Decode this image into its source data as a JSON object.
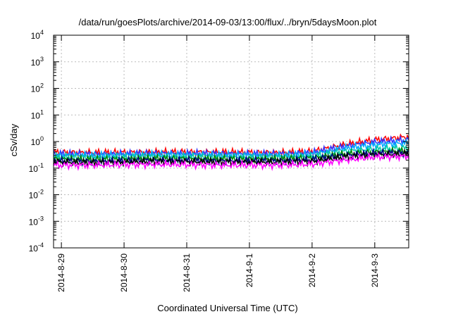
{
  "chart_data": {
    "type": "line",
    "title": "/data/run/goesPlots/archive/2014-09-03/13:00/flux/../bryn/5daysMoon.plot",
    "xlabel": "Coordinated Universal Time (UTC)",
    "ylabel": "cSv/day",
    "yscale": "log",
    "ylim": [
      0.0001,
      10000
    ],
    "xlim": [
      "2014-08-28 21:00",
      "2014-09-03 13:00"
    ],
    "grid": true,
    "y_ticks": [
      {
        "value": 0.0001,
        "base": "10",
        "exp": "-4"
      },
      {
        "value": 0.001,
        "base": "10",
        "exp": "-3"
      },
      {
        "value": 0.01,
        "base": "10",
        "exp": "-2"
      },
      {
        "value": 0.1,
        "base": "10",
        "exp": "-1"
      },
      {
        "value": 1,
        "base": "10",
        "exp": "0"
      },
      {
        "value": 10,
        "base": "10",
        "exp": "1"
      },
      {
        "value": 100,
        "base": "10",
        "exp": "2"
      },
      {
        "value": 1000,
        "base": "10",
        "exp": "3"
      },
      {
        "value": 10000,
        "base": "10",
        "exp": "4"
      }
    ],
    "x_ticks": [
      {
        "value": "2014-08-29 00:00",
        "label": "2014-8-29"
      },
      {
        "value": "2014-08-30 00:00",
        "label": "2014-8-30"
      },
      {
        "value": "2014-08-31 00:00",
        "label": "2014-8-31"
      },
      {
        "value": "2014-09-01 00:00",
        "label": "2014-9-1"
      },
      {
        "value": "2014-09-02 00:00",
        "label": "2014-9-2"
      },
      {
        "value": "2014-09-03 00:00",
        "label": "2014-9-3"
      }
    ],
    "x": [
      "2014-08-28 21:00",
      "2014-08-29 12:00",
      "2014-08-30 12:00",
      "2014-08-31 12:00",
      "2014-09-01 12:00",
      "2014-09-02 00:00",
      "2014-09-02 12:00",
      "2014-09-03 00:00",
      "2014-09-03 13:00"
    ],
    "series": [
      {
        "color": "#ff0000",
        "values": [
          0.4,
          0.38,
          0.4,
          0.4,
          0.38,
          0.42,
          0.75,
          1.15,
          1.5
        ]
      },
      {
        "color": "#3333ff",
        "values": [
          0.35,
          0.33,
          0.36,
          0.35,
          0.34,
          0.38,
          0.65,
          0.95,
          1.15
        ]
      },
      {
        "color": "#00aaff",
        "values": [
          0.3,
          0.3,
          0.32,
          0.31,
          0.3,
          0.33,
          0.55,
          0.75,
          0.9
        ]
      },
      {
        "color": "#00ccaa",
        "values": [
          0.26,
          0.25,
          0.27,
          0.26,
          0.26,
          0.28,
          0.42,
          0.52,
          0.58
        ]
      },
      {
        "color": "#008800",
        "values": [
          0.22,
          0.21,
          0.23,
          0.22,
          0.22,
          0.24,
          0.33,
          0.4,
          0.45
        ]
      },
      {
        "color": "#000088",
        "values": [
          0.19,
          0.18,
          0.2,
          0.19,
          0.19,
          0.21,
          0.3,
          0.36,
          0.38
        ]
      },
      {
        "color": "#000000",
        "values": [
          0.17,
          0.16,
          0.18,
          0.17,
          0.17,
          0.18,
          0.26,
          0.32,
          0.34
        ]
      },
      {
        "color": "#ff00ff",
        "values": [
          0.13,
          0.13,
          0.14,
          0.13,
          0.13,
          0.14,
          0.2,
          0.26,
          0.28
        ]
      }
    ]
  }
}
